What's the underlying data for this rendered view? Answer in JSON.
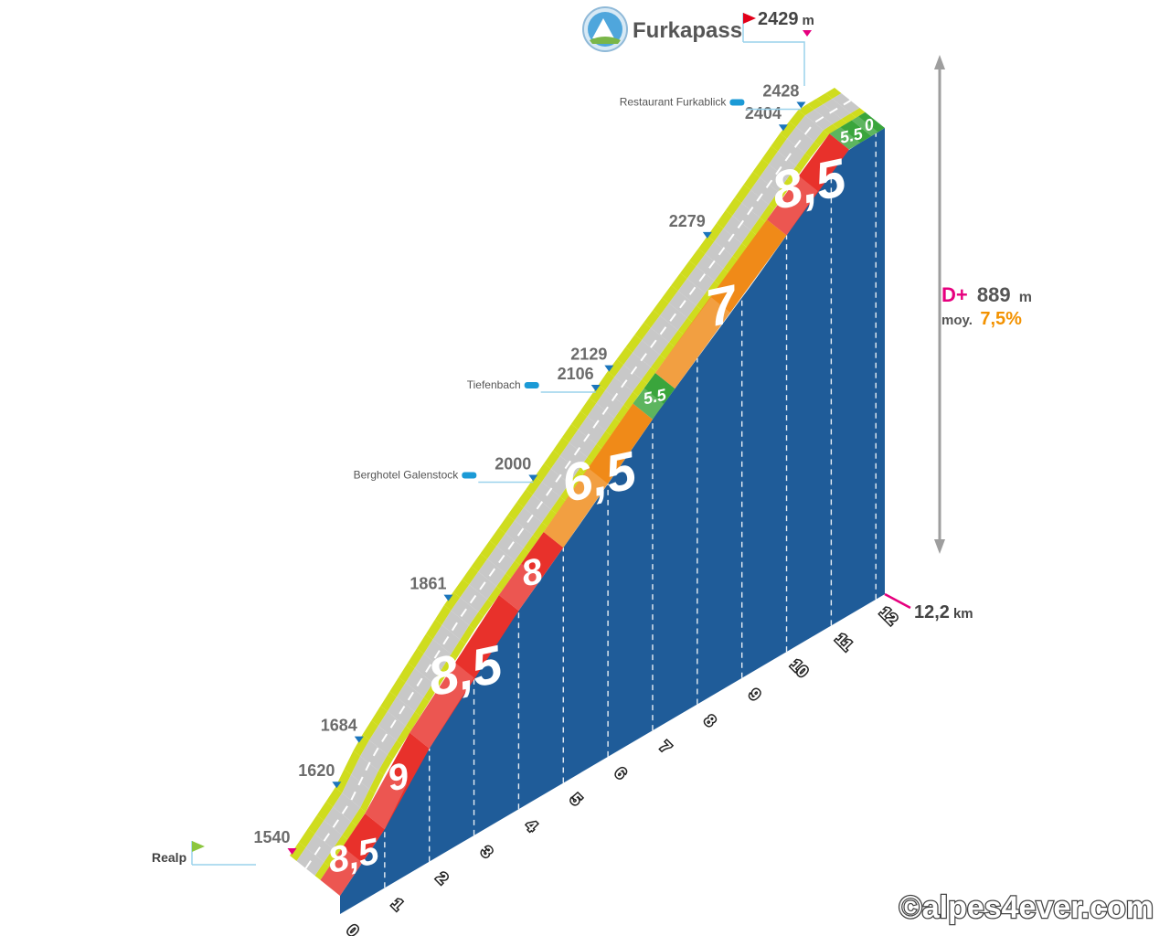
{
  "chart_data": {
    "type": "area",
    "title": "Furkapass",
    "summit_label": "2429",
    "summit_unit": "m",
    "start_label": "Realp",
    "distance_total": "12,2",
    "distance_unit": "km",
    "gain_prefix": "D+",
    "gain_value": "889",
    "gain_unit": "m",
    "avg_prefix": "moy.",
    "avg_value": "7,5%",
    "credit": "©alpes4ever.com",
    "x_ticks": [
      "0",
      "1",
      "2",
      "3",
      "4",
      "5",
      "6",
      "7",
      "8",
      "9",
      "10",
      "11",
      "12"
    ],
    "profile": [
      {
        "km": 0,
        "alt": 1540
      },
      {
        "km": 1,
        "alt": 1620
      },
      {
        "km": 1.5,
        "alt": 1684
      },
      {
        "km": 3.5,
        "alt": 1861
      },
      {
        "km": 5.4,
        "alt": 2000
      },
      {
        "km": 6.8,
        "alt": 2106
      },
      {
        "km": 7.1,
        "alt": 2129
      },
      {
        "km": 9.3,
        "alt": 2279
      },
      {
        "km": 11.0,
        "alt": 2404
      },
      {
        "km": 11.4,
        "alt": 2428
      },
      {
        "km": 12.2,
        "alt": 2429
      }
    ],
    "segments": [
      {
        "from": 0,
        "to": 1,
        "grade": "8,5",
        "color": "#e8312b"
      },
      {
        "from": 1,
        "to": 2,
        "grade": "9",
        "color": "#e8312b"
      },
      {
        "from": 2,
        "to": 4,
        "grade": "8,5",
        "color": "#e8312b"
      },
      {
        "from": 4,
        "to": 5,
        "grade": "8",
        "color": "#e8312b"
      },
      {
        "from": 5,
        "to": 7,
        "grade": "6,5",
        "color": "#f08a18"
      },
      {
        "from": 7,
        "to": 7.5,
        "grade": "5.5",
        "color": "#3aa53c"
      },
      {
        "from": 7.5,
        "to": 10,
        "grade": "7",
        "color": "#f08a18"
      },
      {
        "from": 10,
        "to": 11.4,
        "grade": "8,5",
        "color": "#e8312b"
      },
      {
        "from": 11.4,
        "to": 11.9,
        "grade": "5.5",
        "color": "#3aa53c"
      },
      {
        "from": 11.9,
        "to": 12.2,
        "grade": "0",
        "color": "#3aa53c"
      }
    ],
    "pois": [
      {
        "name": "Restaurant Furkablick",
        "km": 11.4
      },
      {
        "name": "Tiefenbach",
        "km": 6.8
      },
      {
        "name": "Berghotel Galenstock",
        "km": 5.4
      }
    ],
    "colors": {
      "side": "#1f5c99",
      "road": "#c8c8c8",
      "shoulder": "#cfdc1e",
      "start_flag": "#8cc63f",
      "summit_flag": "#e2001a",
      "marker": "#1b75bc",
      "pink": "#e6007e",
      "orange": "#f39200"
    }
  }
}
